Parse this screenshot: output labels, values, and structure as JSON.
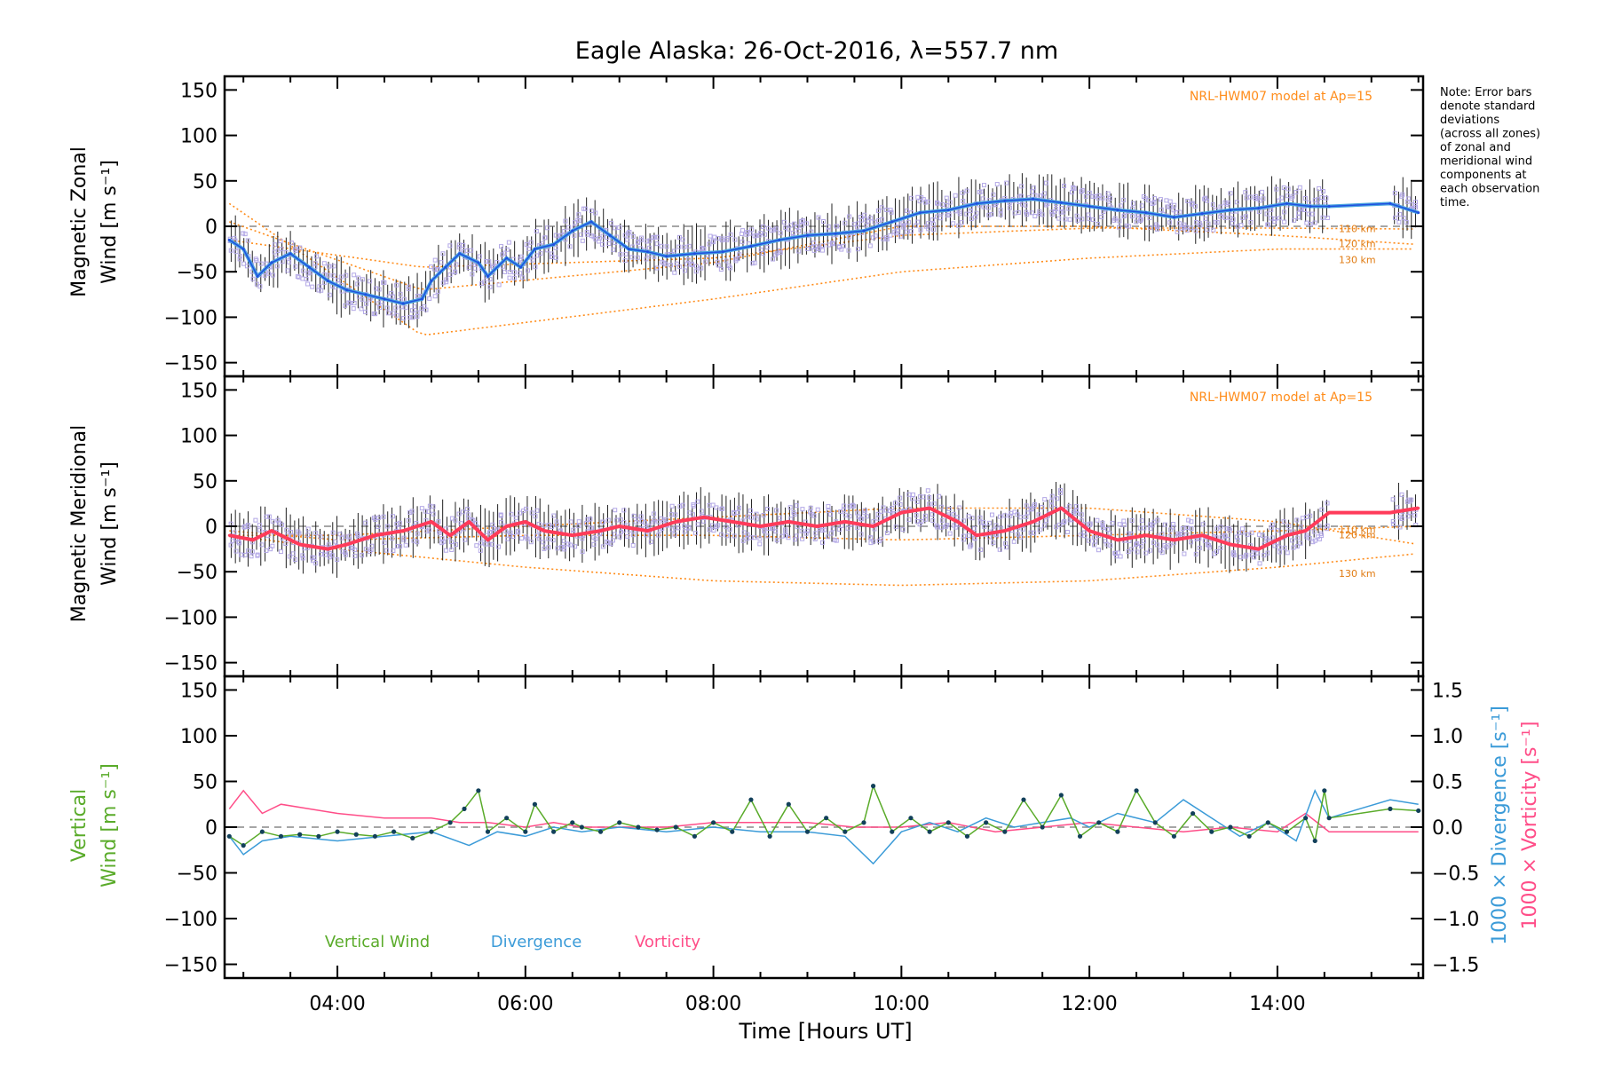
{
  "title": "Eagle Alaska: 26-Oct-2016, λ=557.7 nm",
  "xlabel": "Time [Hours UT]",
  "note_lines": [
    "Note: Error bars",
    "denote standard",
    "deviations",
    "(across all zones)",
    "of zonal and",
    "meridional wind",
    "components at",
    "each observation",
    "time."
  ],
  "model_label": "NRL-HWM07 model at Ap=15",
  "model_heights": [
    "110 km",
    "120 km",
    "130 km"
  ],
  "colors": {
    "zonal": "#1f4fe0",
    "zonal_light": "#4aa3df",
    "meridional": "#ff3b5a",
    "model": "#ff8c1a",
    "scatter": "#b3a8e6",
    "vertical": "#5aab2a",
    "divergence": "#3b9bd8",
    "vorticity": "#ff4d88",
    "errorbar": "#222222"
  },
  "chart_data": [
    {
      "type": "line",
      "panel": "zonal",
      "ylabel_line1": "Magnetic Zonal",
      "ylabel_line2": "Wind [m s⁻¹]",
      "xlim": [
        2.8,
        15.55
      ],
      "ylim": [
        -165,
        165
      ],
      "xticks": [
        4,
        6,
        8,
        10,
        12,
        14
      ],
      "xtick_labels": [
        "04:00",
        "06:00",
        "08:00",
        "10:00",
        "12:00",
        "14:00"
      ],
      "yticks": [
        -150,
        -100,
        -50,
        0,
        50,
        100,
        150
      ],
      "series": [
        {
          "role": "wind",
          "x": [
            2.85,
            3.0,
            3.15,
            3.3,
            3.5,
            3.7,
            3.9,
            4.1,
            4.3,
            4.5,
            4.7,
            4.9,
            5.0,
            5.15,
            5.3,
            5.5,
            5.6,
            5.8,
            5.95,
            6.1,
            6.3,
            6.5,
            6.7,
            6.9,
            7.1,
            7.3,
            7.5,
            7.8,
            8.1,
            8.4,
            8.7,
            9.0,
            9.3,
            9.6,
            9.9,
            10.2,
            10.5,
            10.8,
            11.1,
            11.4,
            11.7,
            12.0,
            12.3,
            12.6,
            12.9,
            13.2,
            13.5,
            13.8,
            14.1,
            14.35,
            14.55,
            15.2,
            15.5
          ],
          "y": [
            -15,
            -25,
            -55,
            -40,
            -30,
            -45,
            -60,
            -70,
            -75,
            -80,
            -85,
            -80,
            -60,
            -45,
            -30,
            -40,
            -55,
            -35,
            -45,
            -25,
            -20,
            -5,
            5,
            -10,
            -25,
            -28,
            -33,
            -30,
            -28,
            -22,
            -15,
            -10,
            -8,
            -5,
            5,
            15,
            18,
            25,
            28,
            30,
            26,
            22,
            18,
            15,
            10,
            14,
            18,
            20,
            25,
            22,
            22,
            25,
            15
          ]
        }
      ],
      "model_curves": [
        {
          "name": "110 km",
          "x": [
            2.85,
            4.9,
            8.0,
            10.0,
            12.0,
            14.0,
            15.5
          ],
          "y": [
            -15,
            -45,
            -35,
            -10,
            -2,
            -2,
            -3
          ]
        },
        {
          "name": "120 km",
          "x": [
            2.85,
            4.9,
            8.0,
            10.0,
            12.0,
            14.0,
            15.5
          ],
          "y": [
            5,
            -70,
            -40,
            0,
            0,
            -10,
            -20
          ]
        },
        {
          "name": "130 km",
          "x": [
            2.85,
            4.9,
            8.0,
            10.0,
            12.0,
            14.0,
            15.5
          ],
          "y": [
            25,
            -120,
            -80,
            -50,
            -35,
            -25,
            -25
          ]
        }
      ]
    },
    {
      "type": "line",
      "panel": "meridional",
      "ylabel_line1": "Magnetic Meridional",
      "ylabel_line2": "Wind [m s⁻¹]",
      "xlim": [
        2.8,
        15.55
      ],
      "ylim": [
        -165,
        165
      ],
      "xticks": [
        4,
        6,
        8,
        10,
        12,
        14
      ],
      "yticks": [
        -150,
        -100,
        -50,
        0,
        50,
        100,
        150
      ],
      "series": [
        {
          "role": "wind",
          "x": [
            2.85,
            3.1,
            3.3,
            3.6,
            3.9,
            4.1,
            4.4,
            4.7,
            5.0,
            5.2,
            5.4,
            5.6,
            5.8,
            6.0,
            6.2,
            6.5,
            6.8,
            7.0,
            7.3,
            7.6,
            7.9,
            8.2,
            8.5,
            8.8,
            9.1,
            9.4,
            9.7,
            10.0,
            10.3,
            10.6,
            10.8,
            11.1,
            11.4,
            11.7,
            12.0,
            12.3,
            12.6,
            12.9,
            13.2,
            13.5,
            13.8,
            14.1,
            14.3,
            14.55,
            15.2,
            15.5
          ],
          "y": [
            -10,
            -15,
            -5,
            -20,
            -25,
            -20,
            -10,
            -5,
            5,
            -10,
            5,
            -15,
            0,
            5,
            -5,
            -10,
            -5,
            0,
            -5,
            5,
            10,
            5,
            0,
            5,
            0,
            5,
            0,
            15,
            20,
            5,
            -10,
            -5,
            5,
            20,
            -5,
            -15,
            -10,
            -15,
            -10,
            -20,
            -25,
            -10,
            -5,
            15,
            15,
            20
          ]
        }
      ],
      "model_curves": [
        {
          "name": "110 km",
          "x": [
            2.85,
            4.0,
            6.0,
            8.0,
            10.0,
            12.0,
            14.0,
            15.5
          ],
          "y": [
            -5,
            -15,
            -10,
            -10,
            -15,
            -10,
            -5,
            0
          ]
        },
        {
          "name": "120 km",
          "x": [
            2.85,
            4.0,
            6.0,
            8.0,
            10.0,
            12.0,
            14.0,
            15.5
          ],
          "y": [
            -10,
            -10,
            0,
            10,
            20,
            20,
            5,
            -20
          ]
        },
        {
          "name": "130 km",
          "x": [
            2.85,
            4.0,
            6.0,
            8.0,
            10.0,
            12.0,
            14.0,
            15.5
          ],
          "y": [
            -10,
            -25,
            -45,
            -60,
            -65,
            -60,
            -45,
            -30
          ]
        }
      ]
    },
    {
      "type": "line",
      "panel": "vertical",
      "ylabel_line1": "Vertical",
      "ylabel_line2": "Wind [m s⁻¹]",
      "y2label_div": "1000 × Divergence [s⁻¹]",
      "y2label_vort": "1000 × Vorticity [s⁻¹]",
      "xlim": [
        2.8,
        15.55
      ],
      "ylim": [
        -165,
        165
      ],
      "y2lim": [
        -1.65,
        1.65
      ],
      "yticks": [
        -150,
        -100,
        -50,
        0,
        50,
        100,
        150
      ],
      "y2ticks": [
        -1.5,
        -1.0,
        -0.5,
        0.0,
        0.5,
        1.0,
        1.5
      ],
      "y2tick_labels": [
        "−1.5",
        "−1.0",
        "−0.5",
        "0.0",
        "0.5",
        "1.0",
        "1.5"
      ],
      "legend": [
        "Vertical Wind",
        "Divergence",
        "Vorticity"
      ],
      "series": [
        {
          "name": "Vertical Wind",
          "x": [
            2.85,
            3.0,
            3.2,
            3.4,
            3.6,
            3.8,
            4.0,
            4.2,
            4.4,
            4.6,
            4.8,
            5.0,
            5.2,
            5.35,
            5.5,
            5.6,
            5.8,
            6.0,
            6.1,
            6.3,
            6.5,
            6.6,
            6.8,
            7.0,
            7.2,
            7.4,
            7.6,
            7.8,
            8.0,
            8.2,
            8.4,
            8.6,
            8.8,
            9.0,
            9.2,
            9.4,
            9.6,
            9.7,
            9.9,
            10.1,
            10.3,
            10.5,
            10.7,
            10.9,
            11.1,
            11.3,
            11.5,
            11.7,
            11.9,
            12.1,
            12.3,
            12.5,
            12.7,
            12.9,
            13.1,
            13.3,
            13.5,
            13.7,
            13.9,
            14.1,
            14.3,
            14.4,
            14.5,
            14.55,
            15.2,
            15.5
          ],
          "y": [
            -10,
            -20,
            -5,
            -10,
            -8,
            -10,
            -5,
            -8,
            -10,
            -5,
            -12,
            -5,
            5,
            20,
            40,
            -5,
            10,
            -5,
            25,
            -5,
            5,
            0,
            -5,
            5,
            0,
            -3,
            0,
            -10,
            5,
            -5,
            30,
            -10,
            25,
            -5,
            10,
            -5,
            5,
            45,
            -5,
            10,
            -5,
            5,
            -10,
            5,
            -5,
            30,
            0,
            35,
            -10,
            5,
            -5,
            40,
            5,
            -10,
            15,
            -5,
            0,
            -10,
            5,
            -5,
            10,
            -15,
            40,
            10,
            20,
            18
          ]
        },
        {
          "name": "Divergence",
          "x": [
            2.85,
            3.0,
            3.2,
            3.5,
            4.0,
            4.5,
            5.0,
            5.4,
            5.7,
            6.0,
            6.3,
            6.6,
            7.0,
            7.5,
            8.0,
            8.5,
            9.0,
            9.4,
            9.7,
            10.0,
            10.3,
            10.6,
            10.9,
            11.2,
            11.5,
            11.8,
            12.0,
            12.3,
            12.7,
            13.0,
            13.3,
            13.6,
            13.9,
            14.2,
            14.4,
            14.55,
            15.2,
            15.5
          ],
          "y": [
            -0.1,
            -0.3,
            -0.15,
            -0.1,
            -0.15,
            -0.1,
            -0.05,
            -0.2,
            -0.05,
            -0.1,
            0.0,
            -0.05,
            0.0,
            -0.05,
            0.0,
            -0.05,
            -0.05,
            -0.1,
            -0.4,
            -0.05,
            0.05,
            -0.05,
            0.1,
            0.0,
            0.05,
            0.1,
            0.0,
            0.15,
            0.05,
            0.3,
            0.1,
            -0.1,
            0.05,
            -0.15,
            0.4,
            0.1,
            0.3,
            0.25
          ]
        },
        {
          "name": "Vorticity",
          "x": [
            2.85,
            3.0,
            3.2,
            3.4,
            3.7,
            4.0,
            4.5,
            5.0,
            5.3,
            5.6,
            6.0,
            6.3,
            6.6,
            7.0,
            7.5,
            8.0,
            8.5,
            9.0,
            9.5,
            10.0,
            10.5,
            11.0,
            11.5,
            12.0,
            12.5,
            13.0,
            13.5,
            14.0,
            14.3,
            14.55,
            15.2,
            15.5
          ],
          "y": [
            0.2,
            0.4,
            0.15,
            0.25,
            0.2,
            0.15,
            0.1,
            0.1,
            0.05,
            0.05,
            0.0,
            0.05,
            0.0,
            0.0,
            0.0,
            0.05,
            0.05,
            0.05,
            0.0,
            0.0,
            0.05,
            -0.05,
            0.0,
            0.05,
            0.0,
            -0.05,
            0.0,
            -0.05,
            0.15,
            -0.05,
            -0.05,
            -0.05
          ]
        }
      ]
    }
  ]
}
